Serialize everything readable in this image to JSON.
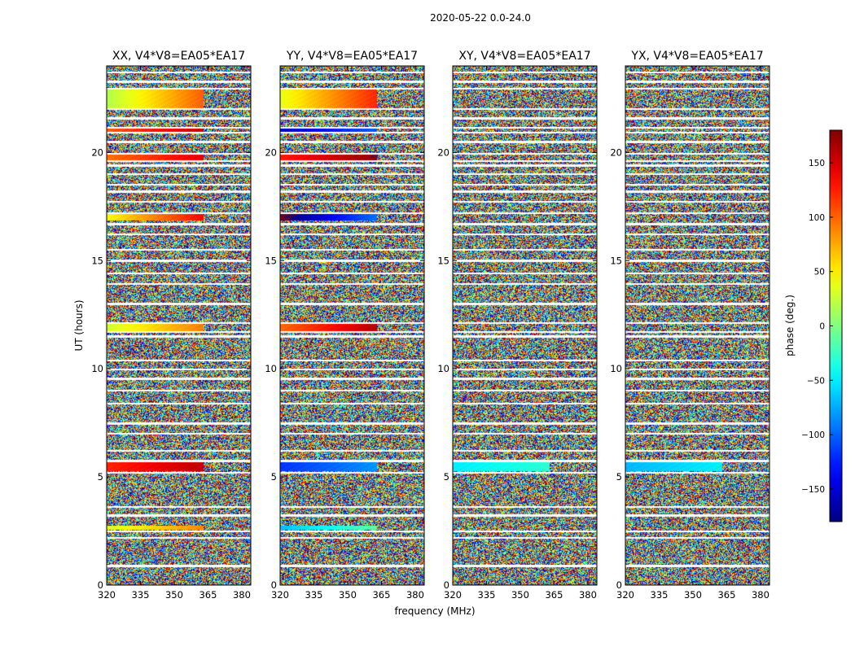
{
  "chart_data": {
    "type": "heatmap",
    "title": "2020-05-22 0.0-24.0",
    "xlabel": "frequency (MHz)",
    "ylabel": "UT (hours)",
    "xlim": [
      320,
      384
    ],
    "ylim": [
      0,
      24
    ],
    "xticks": [
      320,
      335,
      350,
      365,
      380
    ],
    "yticks": [
      0,
      5,
      10,
      15,
      20
    ],
    "panels": [
      {
        "title": "XX, V4*V8=EA05*EA17",
        "correlation": "XX",
        "coherent_bands": [
          [
            2.55,
            2.75,
            60,
            0.8
          ],
          [
            5.25,
            5.7,
            140,
            0.5
          ],
          [
            11.75,
            12.1,
            60,
            0.9
          ],
          [
            16.85,
            17.15,
            90,
            1.3
          ],
          [
            19.65,
            19.9,
            120,
            0.7
          ],
          [
            20.95,
            21.1,
            130,
            0.8
          ],
          [
            22.05,
            22.9,
            60,
            1.2
          ]
        ]
      },
      {
        "title": "YY, V4*V8=EA05*EA17",
        "correlation": "YY",
        "coherent_bands": [
          [
            2.55,
            2.75,
            -40,
            0.8
          ],
          [
            5.25,
            5.7,
            -100,
            0.5
          ],
          [
            11.75,
            12.1,
            130,
            0.9
          ],
          [
            16.85,
            17.15,
            -140,
            1.3
          ],
          [
            19.65,
            19.9,
            150,
            0.7
          ],
          [
            20.95,
            21.1,
            -130,
            0.8
          ],
          [
            22.05,
            22.9,
            80,
            1.2
          ]
        ]
      },
      {
        "title": "XY, V4*V8=EA05*EA17",
        "correlation": "XY",
        "coherent_bands": [
          [
            5.25,
            5.7,
            -40,
            0.3
          ]
        ]
      },
      {
        "title": "YX, V4*V8=EA05*EA17",
        "correlation": "YX",
        "coherent_bands": [
          [
            5.25,
            5.7,
            -60,
            0.3
          ]
        ]
      }
    ],
    "flagged_hours": [
      0.9,
      2.2,
      2.5,
      3.25,
      3.6,
      5.2,
      5.75,
      6.2,
      7.0,
      7.5,
      8.4,
      9.0,
      9.55,
      9.95,
      10.4,
      11.5,
      11.7,
      12.1,
      13.0,
      13.9,
      14.4,
      15.0,
      15.5,
      16.2,
      16.7,
      17.2,
      17.7,
      18.2,
      18.5,
      19.0,
      19.4,
      19.6,
      19.95,
      20.5,
      20.9,
      21.15,
      21.6,
      22.0,
      22.95,
      23.3,
      23.7
    ],
    "colorbar": {
      "label": "phase (deg.)",
      "range": [
        -180,
        180
      ],
      "ticks": [
        -150,
        -100,
        -50,
        0,
        50,
        100,
        150
      ],
      "tick_labels": [
        "−150",
        "−100",
        "−50",
        "0",
        "50",
        "100",
        "150"
      ],
      "colormap": "jet"
    }
  }
}
